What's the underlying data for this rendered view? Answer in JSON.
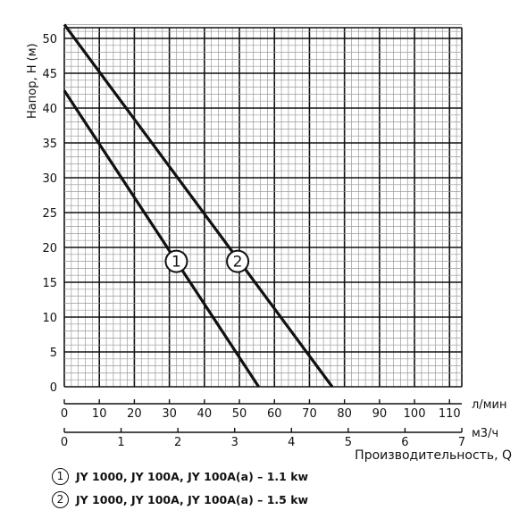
{
  "chart_data": {
    "type": "line",
    "ylabel": "Напор, Н (м)",
    "x_axes": [
      {
        "unit": "л/мин",
        "min": 0,
        "max": 113.5,
        "ticks": [
          0,
          10,
          20,
          30,
          40,
          50,
          60,
          70,
          80,
          90,
          100,
          110
        ]
      },
      {
        "unit": "м3/ч",
        "min": 0,
        "max": 7,
        "ticks": [
          0,
          1,
          2,
          3,
          4,
          5,
          6,
          7
        ]
      }
    ],
    "xlabel": "Производительность, Q",
    "ylim": [
      0,
      52
    ],
    "y_ticks": [
      0,
      5,
      10,
      15,
      20,
      25,
      30,
      35,
      40,
      45,
      50
    ],
    "grid": true,
    "series": [
      {
        "marker": "1",
        "x": [
          0,
          55.5
        ],
        "y": [
          42.5,
          0
        ]
      },
      {
        "marker": "2",
        "x": [
          0,
          76.5
        ],
        "y": [
          52,
          0
        ]
      }
    ],
    "markers": [
      {
        "label": "1",
        "x": 32,
        "y": 18
      },
      {
        "label": "2",
        "x": 49.5,
        "y": 18
      }
    ],
    "legend": [
      {
        "num": "1",
        "text": "JY 1000, JY 100A, JY 100A(a)  – 1.1 kw"
      },
      {
        "num": "2",
        "text": "JY 1000, JY 100A, JY 100A(a) –  1.5 kw"
      }
    ],
    "colors": {
      "line": "#111111",
      "grid_minor": "#9a9a9a",
      "grid_major": "#111111"
    }
  }
}
